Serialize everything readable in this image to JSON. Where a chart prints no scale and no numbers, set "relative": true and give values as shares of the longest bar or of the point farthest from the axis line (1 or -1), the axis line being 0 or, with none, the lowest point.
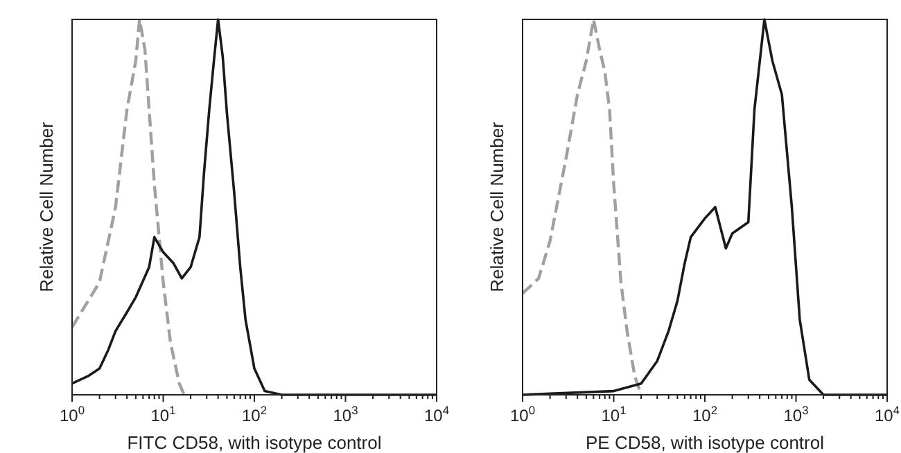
{
  "chart_data": [
    {
      "type": "line",
      "xlabel": "FITC CD58, with isotype control",
      "ylabel": "Relative Cell Number",
      "relative": true,
      "log": "x",
      "xlim": [
        1,
        10000
      ],
      "xticks": [
        {
          "value": 1,
          "label": "10$^{0}$"
        },
        {
          "value": 10,
          "label": "10$^{1}$"
        },
        {
          "value": 100,
          "label": "10$^{2}$"
        },
        {
          "value": 1000,
          "label": "10$^{3}$"
        },
        {
          "value": 10000,
          "label": "10$^{4}$"
        }
      ],
      "series": [
        {
          "color": "#a0a0a0",
          "line_style": "dashed",
          "x": [
            1,
            2,
            3,
            4,
            5,
            5.5,
            6.3,
            7,
            8,
            10,
            12,
            15,
            17
          ],
          "values": [
            0.18,
            0.3,
            0.5,
            0.76,
            0.89,
            1,
            0.92,
            0.76,
            0.56,
            0.3,
            0.14,
            0.03,
            0
          ]
        },
        {
          "color": "#1a1a1a",
          "line_style": "solid",
          "x": [
            1,
            1.5,
            2,
            2.5,
            3,
            4,
            5,
            7,
            8,
            10,
            13,
            16,
            20,
            25,
            28,
            32,
            36,
            40,
            45,
            50,
            60,
            70,
            80,
            100,
            130,
            200,
            10000
          ],
          "values": [
            0.03,
            0.05,
            0.07,
            0.12,
            0.17,
            0.22,
            0.26,
            0.34,
            0.42,
            0.38,
            0.35,
            0.31,
            0.34,
            0.42,
            0.59,
            0.76,
            0.89,
            1,
            0.9,
            0.75,
            0.54,
            0.34,
            0.2,
            0.07,
            0.01,
            0,
            0
          ]
        }
      ]
    },
    {
      "type": "line",
      "xlabel": "PE CD58, with isotype control",
      "ylabel": "Relative Cell Number",
      "relative": true,
      "log": "x",
      "xlim": [
        1,
        10000
      ],
      "xticks": [
        {
          "value": 1,
          "label": "10$^{0}$"
        },
        {
          "value": 10,
          "label": "10$^{1}$"
        },
        {
          "value": 100,
          "label": "10$^{2}$"
        },
        {
          "value": 1000,
          "label": "10$^{3}$"
        },
        {
          "value": 10000,
          "label": "10$^{4}$"
        }
      ],
      "series": [
        {
          "color": "#a0a0a0",
          "line_style": "dashed",
          "x": [
            1,
            1.5,
            2,
            3,
            4,
            5,
            6,
            7,
            8,
            9,
            10,
            12,
            14,
            17,
            20
          ],
          "values": [
            0.27,
            0.31,
            0.41,
            0.63,
            0.8,
            0.89,
            1,
            0.92,
            0.86,
            0.76,
            0.56,
            0.3,
            0.17,
            0.05,
            0
          ]
        },
        {
          "color": "#1a1a1a",
          "line_style": "solid",
          "x": [
            1,
            10,
            20,
            30,
            40,
            50,
            60,
            70,
            100,
            130,
            170,
            200,
            300,
            350,
            450,
            550,
            700,
            900,
            1100,
            1400,
            2000,
            10000
          ],
          "values": [
            0,
            0.01,
            0.03,
            0.09,
            0.17,
            0.25,
            0.35,
            0.42,
            0.47,
            0.5,
            0.39,
            0.43,
            0.46,
            0.76,
            1,
            0.89,
            0.8,
            0.5,
            0.2,
            0.04,
            0,
            0
          ]
        }
      ]
    }
  ]
}
